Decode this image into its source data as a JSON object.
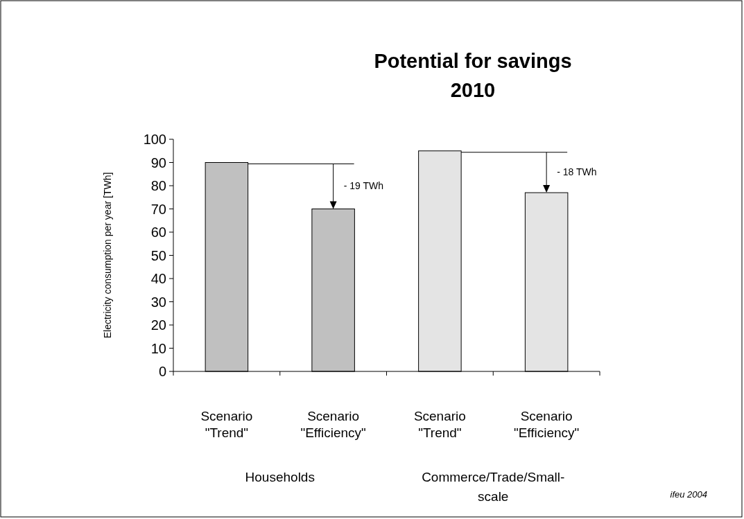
{
  "chart_data": {
    "type": "bar",
    "title": "Potential for savings\n2010",
    "ylabel": "Electricity consumption per year [TWh]",
    "categories": [
      "Scenario\n\"Trend\"",
      "Scenario\n\"Efficiency\"",
      "Scenario\n\"Trend\"",
      "Scenario\n\"Efficiency\""
    ],
    "values": [
      90,
      70,
      95,
      77
    ],
    "colors": [
      "#c0c0c0",
      "#c0c0c0",
      "#e4e4e4",
      "#e4e4e4"
    ],
    "ylim": [
      0,
      100
    ],
    "yticks": [
      0,
      10,
      20,
      30,
      40,
      50,
      60,
      70,
      80,
      90,
      100
    ],
    "grid": false,
    "annotations": [
      "- 19 TWh",
      "- 18 TWh",
      "Households",
      "Commerce/Trade/Small-\nscale",
      "ifeu 2004"
    ]
  }
}
